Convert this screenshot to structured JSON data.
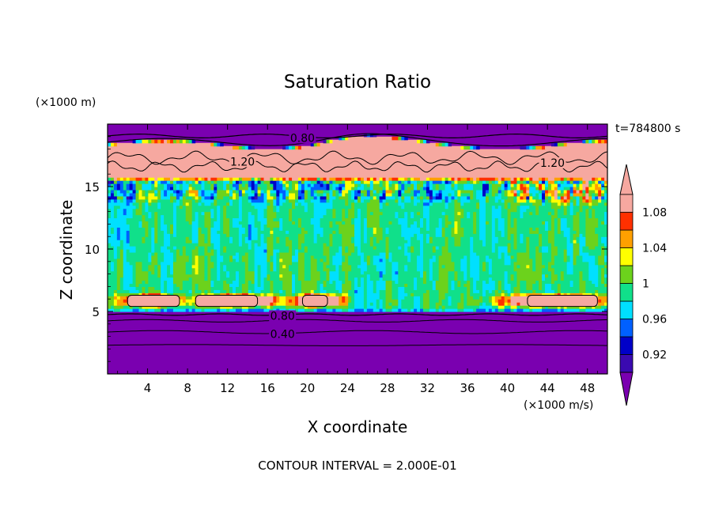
{
  "chart_data": {
    "type": "heatmap",
    "title": "Saturation Ratio",
    "xlabel": "X coordinate",
    "ylabel": "Z coordinate",
    "x_units": "(×1000 m/s)",
    "y_units": "(×1000 m)",
    "time_label": "t=784800 s",
    "footer": "CONTOUR INTERVAL = 2.000E-01",
    "xlim": [
      0,
      50
    ],
    "ylim": [
      0,
      20
    ],
    "x_ticks": [
      4,
      8,
      12,
      16,
      20,
      24,
      28,
      32,
      36,
      40,
      44,
      48
    ],
    "y_ticks": [
      5,
      10,
      15
    ],
    "colorbar": {
      "levels": [
        0.9,
        0.92,
        0.94,
        0.96,
        0.98,
        1.0,
        1.02,
        1.04,
        1.06,
        1.08,
        1.1
      ],
      "tick_labels": [
        "0.92",
        "0.96",
        "1",
        "1.04",
        "1.08"
      ],
      "tick_values": [
        0.92,
        0.96,
        1.0,
        1.04,
        1.08
      ],
      "colors": [
        "#7a00b0",
        "#3a0ab0",
        "#0000c8",
        "#0060ff",
        "#00e0ff",
        "#10e08a",
        "#6cd21c",
        "#ffff00",
        "#ffa000",
        "#ff3000",
        "#f6a8a0"
      ]
    },
    "contour_labels": [
      {
        "text": "0.80",
        "x": 19.5,
        "y": 18.9
      },
      {
        "text": "1.20",
        "x": 13.5,
        "y": 17.0
      },
      {
        "text": "1.20",
        "x": 44.5,
        "y": 16.9
      },
      {
        "text": "0.80",
        "x": 17.5,
        "y": 4.65
      },
      {
        "text": "0.40",
        "x": 17.5,
        "y": 3.2
      }
    ],
    "regions": {
      "upper_dry_layer": {
        "z_range": [
          18.5,
          20
        ],
        "ratio": "<0.90"
      },
      "ice_supersaturated_layer": {
        "z_range": [
          16,
          18.3
        ],
        "ratio": ">1.10"
      },
      "mixed_layer": {
        "z_range": [
          14,
          16
        ],
        "ratio": "0.98–1.10"
      },
      "cloud_layer": {
        "z_range": [
          5.5,
          14
        ],
        "ratio": "0.98–1.02"
      },
      "lower_dry_layer": {
        "z_range": [
          0,
          4.9
        ],
        "ratio": "<0.90"
      }
    }
  }
}
